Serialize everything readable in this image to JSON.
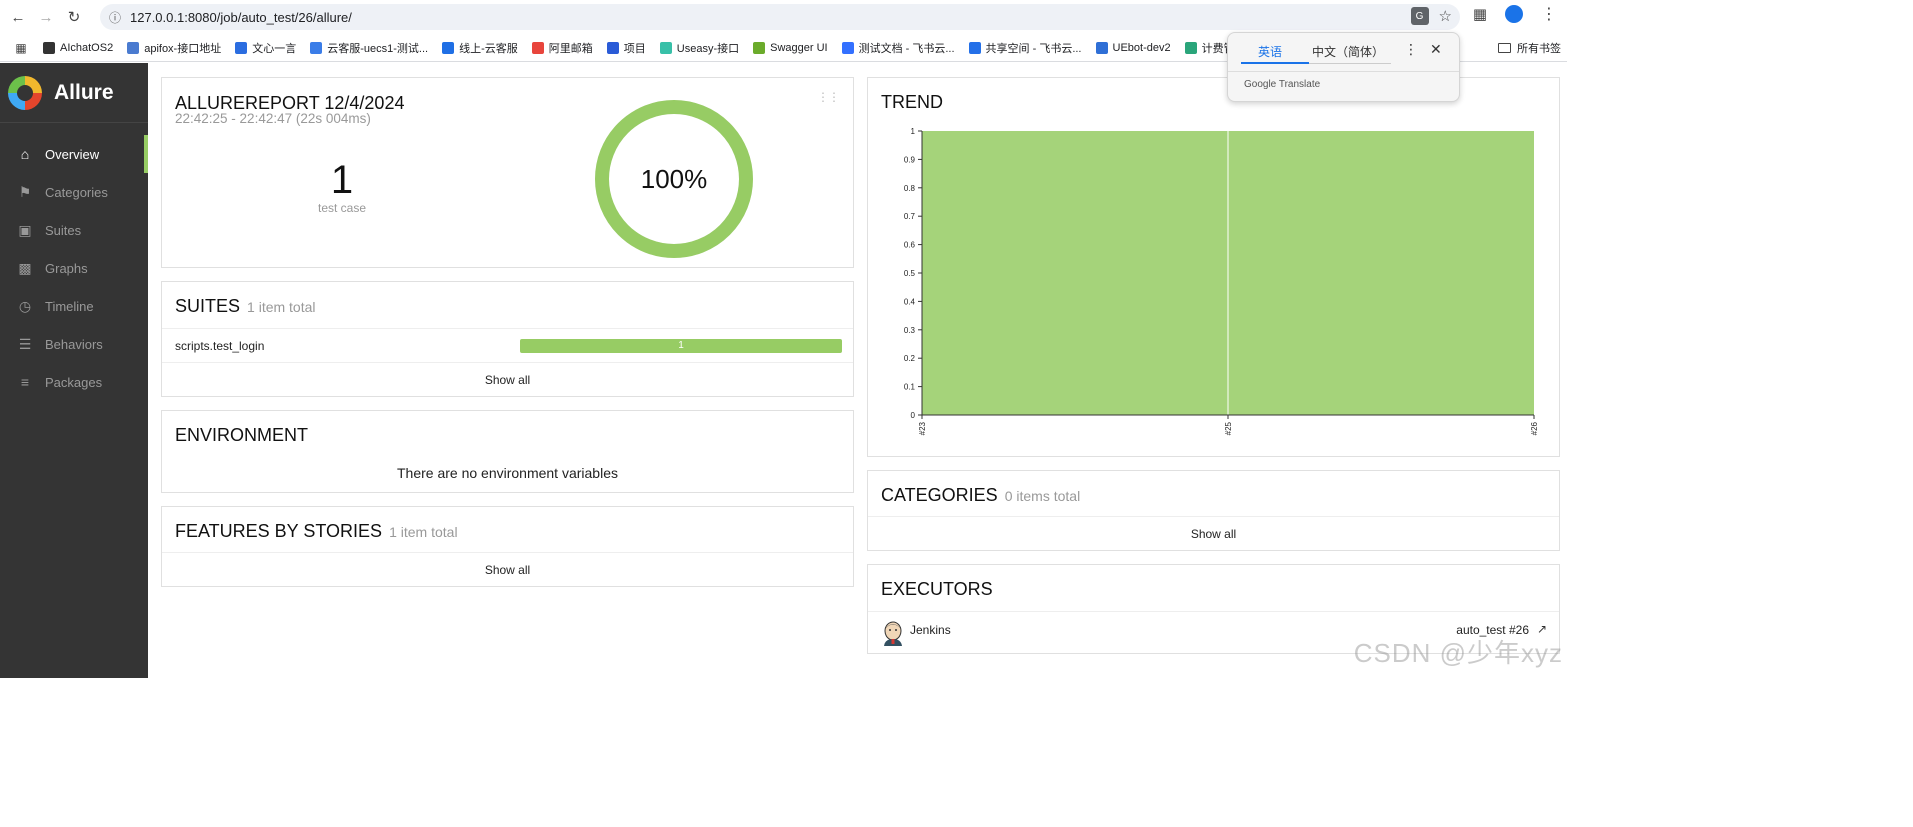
{
  "browser": {
    "url": "127.0.0.1:8080/job/auto_test/26/allure/",
    "bookmarks": [
      {
        "label": "AIchatOS2",
        "color": "#333333"
      },
      {
        "label": "apifox-接口地址",
        "color": "#4a7bd0"
      },
      {
        "label": "文心一言",
        "color": "#2b6de0"
      },
      {
        "label": "云客服-uecs1-测试...",
        "color": "#3a7de8"
      },
      {
        "label": "线上-云客服",
        "color": "#1f6fe5"
      },
      {
        "label": "阿里邮箱",
        "color": "#e8453c"
      },
      {
        "label": "项目",
        "color": "#2a5bd7"
      },
      {
        "label": "Useasy-接口",
        "color": "#38c0a8"
      },
      {
        "label": "Swagger UI",
        "color": "#6bab2b"
      },
      {
        "label": "测试文档 - 飞书云...",
        "color": "#3370ff"
      },
      {
        "label": "共享空间 - 飞书云...",
        "color": "#2470e8"
      },
      {
        "label": "UEbot-dev2",
        "color": "#2f6fd6"
      },
      {
        "label": "计费管理平台",
        "color": "#2aa57a"
      }
    ],
    "all_bookmarks_label": "所有书签"
  },
  "translate_popup": {
    "tab_source": "英语",
    "tab_target": "中文（简体）",
    "brand": "Google Translate"
  },
  "sidebar": {
    "brand": "Allure",
    "items": [
      {
        "label": "Overview",
        "icon": "home-icon",
        "active": true
      },
      {
        "label": "Categories",
        "icon": "flag-icon",
        "active": false
      },
      {
        "label": "Suites",
        "icon": "briefcase-icon",
        "active": false
      },
      {
        "label": "Graphs",
        "icon": "bar-chart-icon",
        "active": false
      },
      {
        "label": "Timeline",
        "icon": "clock-icon",
        "active": false
      },
      {
        "label": "Behaviors",
        "icon": "list-icon",
        "active": false
      },
      {
        "label": "Packages",
        "icon": "align-left-icon",
        "active": false
      }
    ]
  },
  "summary": {
    "title": "ALLUREREPORT 12/4/2024",
    "time": "22:42:25 - 22:42:47 (22s 004ms)",
    "test_case_count": "1",
    "test_case_label": "test case",
    "pass_rate": "100%",
    "pass_fraction": 1.0,
    "pass_color": "#97cc64"
  },
  "suites": {
    "title": "SUITES",
    "count": "1 item total",
    "items": [
      {
        "name": "scripts.test_login",
        "passed": "1"
      }
    ],
    "show_all": "Show all"
  },
  "environment": {
    "title": "ENVIRONMENT",
    "empty_text": "There are no environment variables"
  },
  "features": {
    "title": "FEATURES BY STORIES",
    "count": "1 item total",
    "show_all": "Show all"
  },
  "trend": {
    "title": "TREND"
  },
  "categories": {
    "title": "CATEGORIES",
    "count": "0 items total",
    "show_all": "Show all"
  },
  "executors": {
    "title": "EXECUTORS",
    "name": "Jenkins",
    "build": "auto_test #26"
  },
  "chart_data": {
    "type": "area",
    "x": [
      "#23",
      "#25",
      "#26"
    ],
    "series": [
      {
        "values": [
          1,
          1,
          1
        ],
        "color": "#a5d37a"
      }
    ],
    "ylim": [
      0,
      1
    ],
    "yticks": [
      "0",
      "0.1",
      "0.2",
      "0.3",
      "0.4",
      "0.5",
      "0.6",
      "0.7",
      "0.8",
      "0.9",
      "1"
    ],
    "grid": false
  },
  "watermark": "CSDN @少年xyz"
}
